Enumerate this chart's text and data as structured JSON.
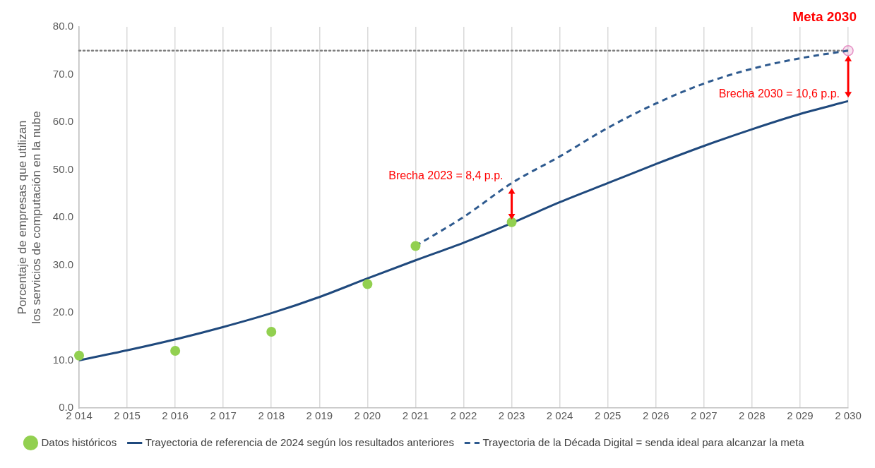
{
  "chart_data": {
    "type": "line",
    "ylabel": "Porcentaje de empresas que utilizan los servicios de computación en la nube",
    "xlim": [
      2014,
      2030
    ],
    "xticks": [
      {
        "value": 2014,
        "label": "2 014"
      },
      {
        "value": 2015,
        "label": "2 015"
      },
      {
        "value": 2016,
        "label": "2 016"
      },
      {
        "value": 2017,
        "label": "2 017"
      },
      {
        "value": 2018,
        "label": "2 018"
      },
      {
        "value": 2019,
        "label": "2 019"
      },
      {
        "value": 2020,
        "label": "2 020"
      },
      {
        "value": 2021,
        "label": "2 021"
      },
      {
        "value": 2022,
        "label": "2 022"
      },
      {
        "value": 2023,
        "label": "2 023"
      },
      {
        "value": 2024,
        "label": "2 024"
      },
      {
        "value": 2025,
        "label": "2 025"
      },
      {
        "value": 2026,
        "label": "2 026"
      },
      {
        "value": 2027,
        "label": "2 027"
      },
      {
        "value": 2028,
        "label": "2 028"
      },
      {
        "value": 2029,
        "label": "2 029"
      },
      {
        "value": 2030,
        "label": "2 030"
      }
    ],
    "ylim": [
      0,
      80
    ],
    "yticks": [
      {
        "value": 0,
        "label": "0.0"
      },
      {
        "value": 10,
        "label": "10.0"
      },
      {
        "value": 20,
        "label": "20.0"
      },
      {
        "value": 30,
        "label": "30.0"
      },
      {
        "value": 40,
        "label": "40.0"
      },
      {
        "value": 50,
        "label": "50.0"
      },
      {
        "value": 60,
        "label": "60.0"
      },
      {
        "value": 70,
        "label": "70.0"
      },
      {
        "value": 80,
        "label": "80.0"
      }
    ],
    "grid": "x",
    "legend": "bottom",
    "series": [
      {
        "name": "Datos históricos",
        "type": "scatter",
        "marker": "circle",
        "color": "#92d050",
        "x": [
          2014,
          2016,
          2018,
          2020,
          2021,
          2023
        ],
        "values": [
          11,
          12,
          16,
          26,
          34,
          39
        ]
      },
      {
        "name": "Trayectoria de referencia de 2024 según los resultados anteriores",
        "marker": "none",
        "line_style": "solid",
        "color": "#1f497d",
        "x": [
          2014,
          2015,
          2016,
          2017,
          2018,
          2019,
          2020,
          2021,
          2022,
          2023,
          2024,
          2025,
          2026,
          2027,
          2028,
          2029,
          2030
        ],
        "values": [
          10,
          12.1,
          14.4,
          17,
          19.9,
          23.3,
          27.2,
          31,
          34.7,
          38.8,
          43.2,
          47.2,
          51.2,
          55,
          58.5,
          61.7,
          64.4
        ]
      },
      {
        "name": "Trayectoria de la Década Digital = senda ideal para alcanzar la meta",
        "marker": "none",
        "line_style": "dashed",
        "color": "#2e5a8f",
        "x": [
          2021,
          2022,
          2023,
          2024,
          2025,
          2026,
          2027,
          2028,
          2029,
          2030
        ],
        "values": [
          34,
          40.1,
          47.2,
          52.8,
          58.8,
          63.9,
          68.1,
          71.2,
          73.4,
          75
        ]
      },
      {
        "type": "scatter",
        "marker": "circle",
        "color": "#e58fc4",
        "x": [
          2030
        ],
        "values": [
          75
        ]
      }
    ],
    "ref_lines": [
      {
        "axis": "y",
        "value": 75,
        "color": "#7f7f7f",
        "line_style": "dotted"
      }
    ],
    "annotations": [
      "Meta 2030",
      {
        "text": "Brecha 2023 = 8,4 p.p.",
        "x": 2023,
        "y": 47.2
      },
      {
        "text": "Brecha 2030 = 10,6 p.p.",
        "x": 2030,
        "y": 64.4
      }
    ]
  }
}
